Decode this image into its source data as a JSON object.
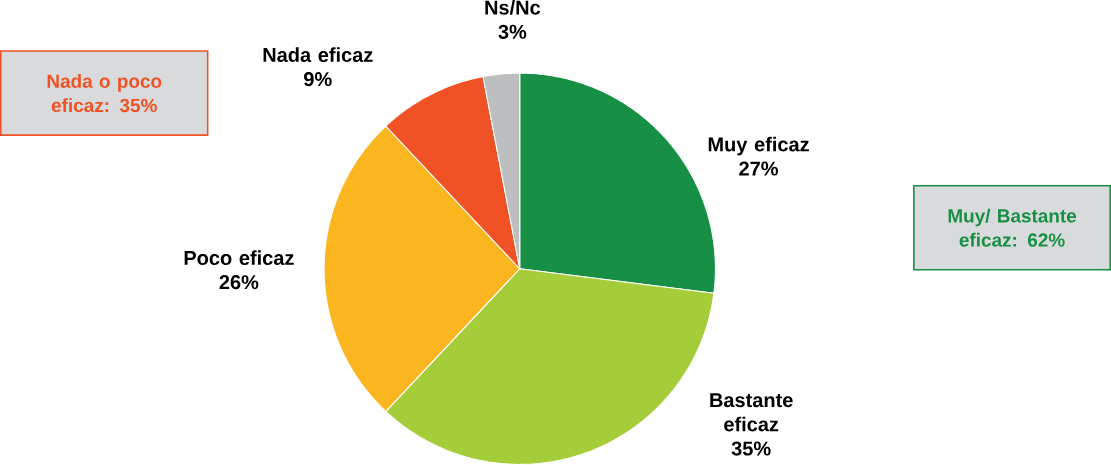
{
  "chart_data": {
    "type": "pie",
    "categories": [
      "Muy eficaz",
      "Bastante eficaz",
      "Poco eficaz",
      "Nada eficaz",
      "Ns/Nc"
    ],
    "values": [
      27,
      35,
      26,
      9,
      3
    ],
    "value_labels": [
      "27%",
      "35%",
      "26%",
      "9%",
      "3%"
    ],
    "colors": [
      "#178f45",
      "#a5cd39",
      "#fbb51f",
      "#f05125",
      "#bcbec0"
    ],
    "annotations": [
      "Nada o poco eficaz: 35%",
      "Muy/ Bastante eficaz: 62%"
    ]
  }
}
